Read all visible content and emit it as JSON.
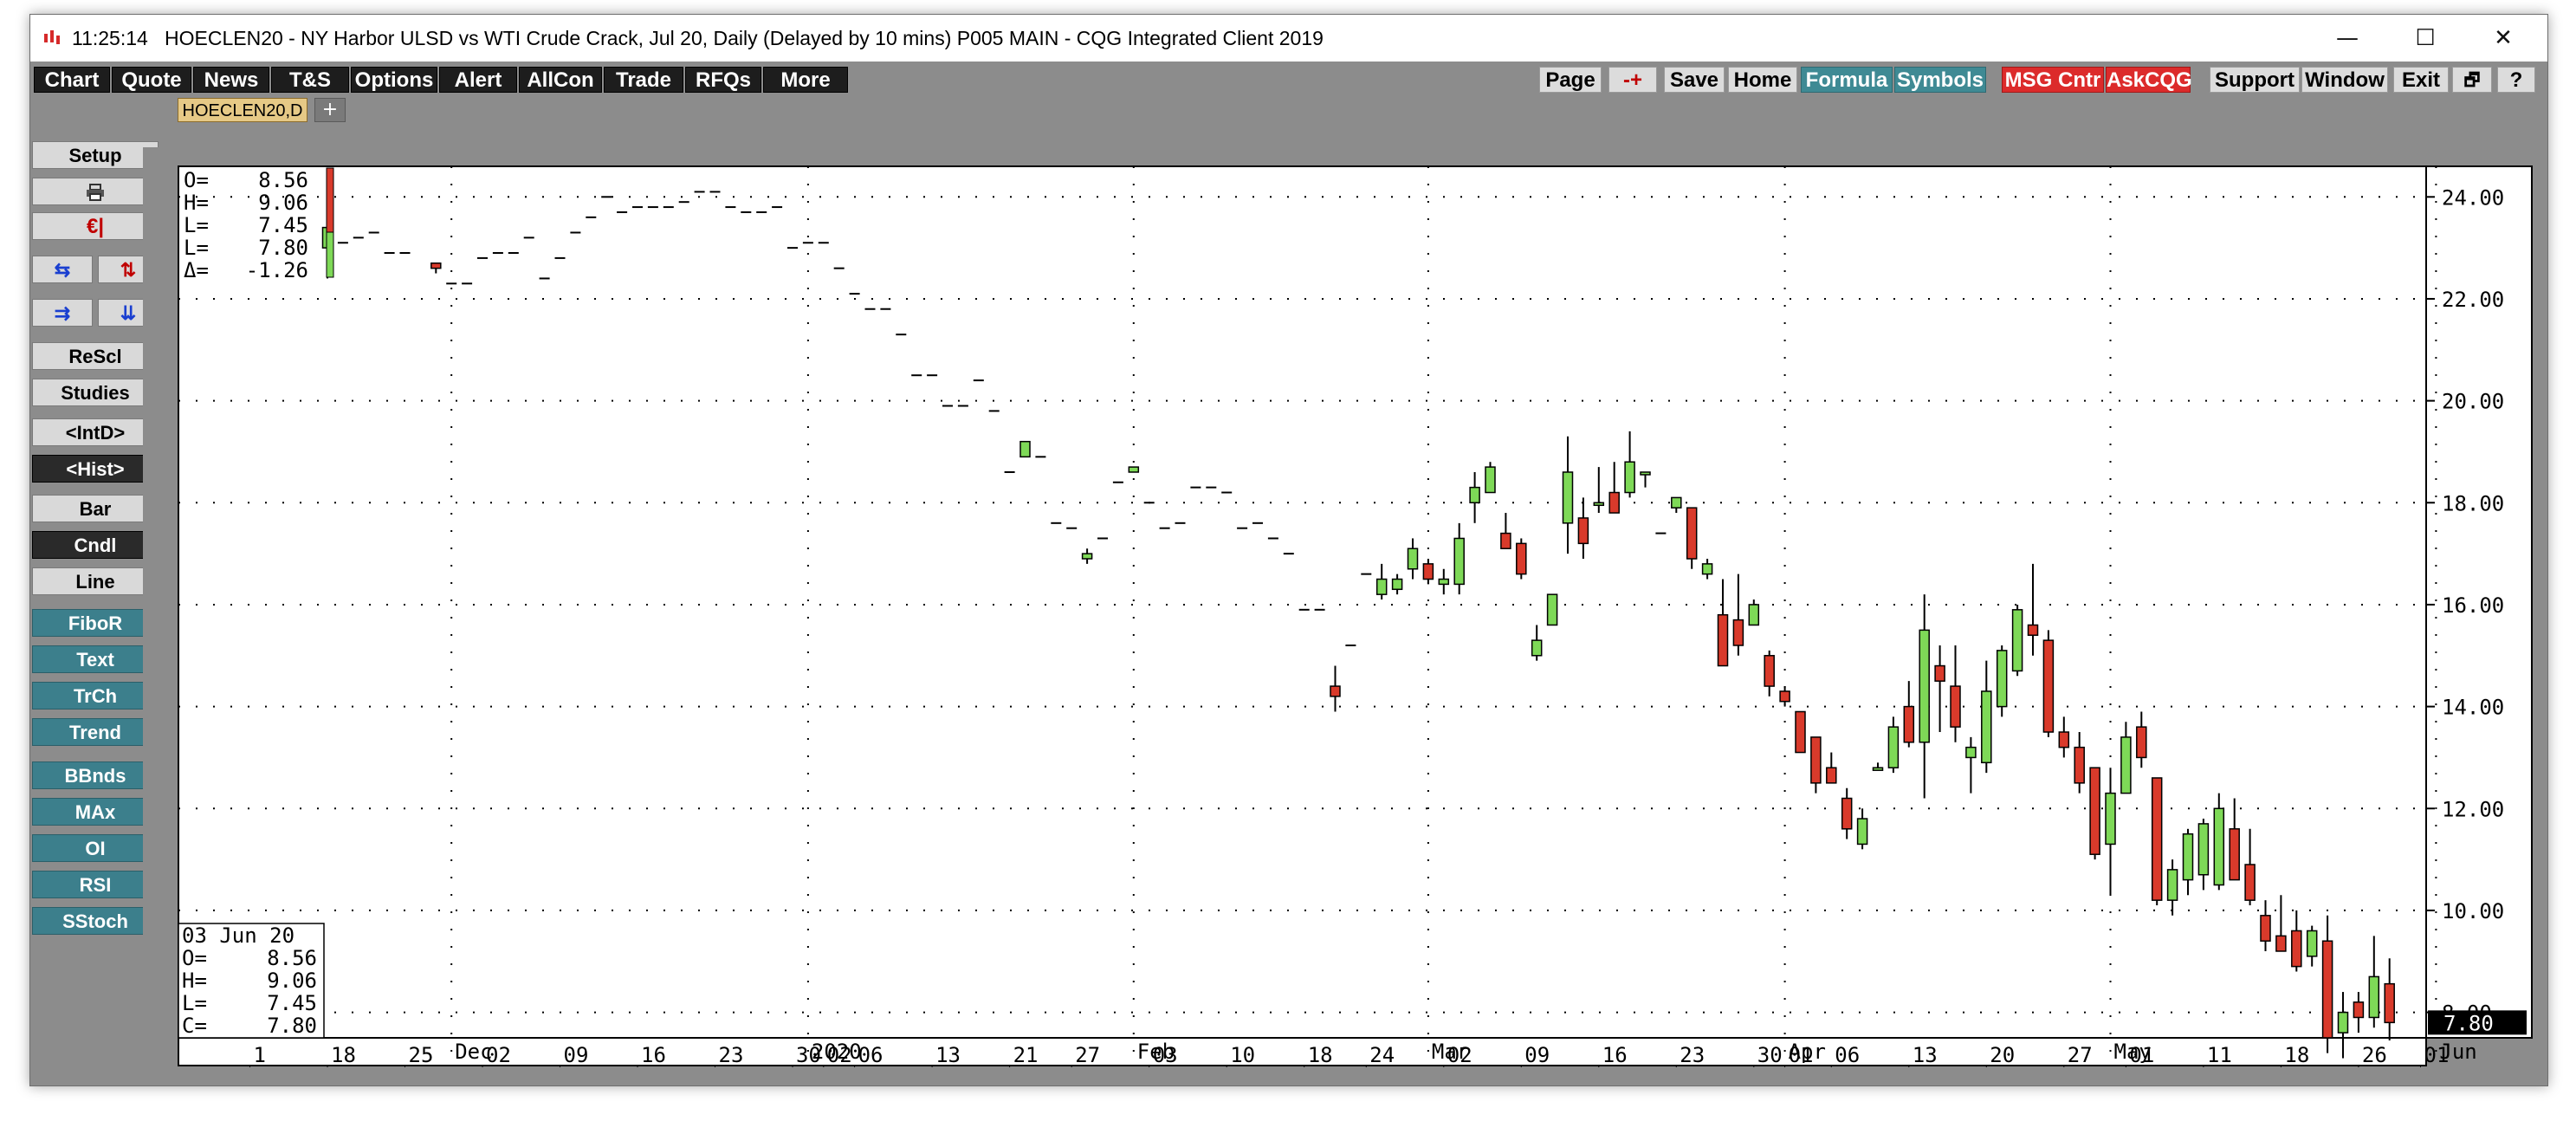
{
  "window": {
    "time": "11:25:14",
    "title": "HOECLEN20 - NY Harbor ULSD vs WTI Crude Crack, Jul 20, Daily (Delayed by 10 mins)   P005 MAIN - CQG Integrated Client 2019",
    "minimize_glyph": "—",
    "maximize_glyph": "☐",
    "close_glyph": "✕"
  },
  "toolbar": {
    "left": [
      "Chart",
      "Quote",
      "News",
      "T&S",
      "Options",
      "Alert",
      "AllCon",
      "Trade",
      "RFQs",
      "More"
    ],
    "page": "Page",
    "plusminus": "-+",
    "save": "Save",
    "home": "Home",
    "formula": "Formula",
    "symbols": "Symbols",
    "msg_cntr": "MSG Cntr",
    "askcqg": "AskCQG",
    "support": "Support",
    "window": "Window",
    "exit": "Exit",
    "restore_glyph": "🗗",
    "help": "?"
  },
  "sidebar": {
    "setup": "Setup",
    "rescl": "ReScl",
    "studies": "Studies",
    "intd": "<IntD>",
    "hist": "<Hist>",
    "bar": "Bar",
    "cndl": "Cndl",
    "line": "Line",
    "fibor": "FiboR",
    "text": "Text",
    "trch": "TrCh",
    "trend": "Trend",
    "bbnds": "BBnds",
    "max": "MAx",
    "oi": "OI",
    "rsi": "RSI",
    "sstoch": "SStoch",
    "print_icon": "printer-icon",
    "euro_icon": "euro-icon"
  },
  "tabs": {
    "active": "HOECLEN20,D",
    "add": "+"
  },
  "chart_data": {
    "type": "candlestick",
    "title": "",
    "xlabel": "",
    "ylabel": "",
    "ylim": [
      7.5,
      24.6
    ],
    "y_ticks": [
      24,
      22,
      20,
      18,
      16,
      14,
      12,
      10,
      8
    ],
    "y_tick_labels": [
      "24.00",
      "22.00",
      "20.00",
      "18.00",
      "16.00",
      "14.00",
      "12.00",
      "10.00",
      "8.00"
    ],
    "grid": true,
    "last_price_label": "7.80",
    "ohlc_box": {
      "O": "8.56",
      "H": "9.06",
      "L": "7.45",
      "L2": "7.80",
      "delta": "-1.26"
    },
    "data_box": {
      "date": "03 Jun 20",
      "O": "8.56",
      "H": "9.06",
      "L": "7.45",
      "C": "7.80"
    },
    "x_axis_top": [
      {
        "label": "Dec",
        "day": 8
      },
      {
        "label": "2020",
        "day": 31
      },
      {
        "label": "Feb",
        "day": 52
      },
      {
        "label": "Mar",
        "day": 71
      },
      {
        "label": "Apr",
        "day": 94
      },
      {
        "label": "May",
        "day": 115
      },
      {
        "label": "Jun",
        "day": 136
      }
    ],
    "x_axis_bottom": [
      {
        "label": "1",
        "day": -5
      },
      {
        "label": "18",
        "day": 0
      },
      {
        "label": "25",
        "day": 5
      },
      {
        "label": "02",
        "day": 10
      },
      {
        "label": "09",
        "day": 15
      },
      {
        "label": "16",
        "day": 20
      },
      {
        "label": "23",
        "day": 25
      },
      {
        "label": "30",
        "day": 30
      },
      {
        "label": "02",
        "day": 32
      },
      {
        "label": "06",
        "day": 34
      },
      {
        "label": "13",
        "day": 39
      },
      {
        "label": "21",
        "day": 44
      },
      {
        "label": "27",
        "day": 48
      },
      {
        "label": "03",
        "day": 53
      },
      {
        "label": "10",
        "day": 58
      },
      {
        "label": "18",
        "day": 63
      },
      {
        "label": "24",
        "day": 67
      },
      {
        "label": "02",
        "day": 72
      },
      {
        "label": "09",
        "day": 77
      },
      {
        "label": "16",
        "day": 82
      },
      {
        "label": "23",
        "day": 87
      },
      {
        "label": "30",
        "day": 92
      },
      {
        "label": "01",
        "day": 94
      },
      {
        "label": "06",
        "day": 97
      },
      {
        "label": "13",
        "day": 102
      },
      {
        "label": "20",
        "day": 107
      },
      {
        "label": "27",
        "day": 112
      },
      {
        "label": "01",
        "day": 116
      },
      {
        "label": "11",
        "day": 121
      },
      {
        "label": "18",
        "day": 126
      },
      {
        "label": "26",
        "day": 131
      },
      {
        "label": "01",
        "day": 135
      }
    ],
    "candles": [
      {
        "d": 0,
        "o": 23.0,
        "h": 24.3,
        "l": 22.4,
        "c": 23.4
      },
      {
        "d": 1,
        "o": 23.1,
        "h": 23.1,
        "l": 23.1,
        "c": 23.1
      },
      {
        "d": 2,
        "o": 23.2,
        "h": 23.2,
        "l": 23.2,
        "c": 23.2
      },
      {
        "d": 3,
        "o": 23.3,
        "h": 23.3,
        "l": 23.3,
        "c": 23.3
      },
      {
        "d": 4,
        "o": 22.9,
        "h": 22.9,
        "l": 22.9,
        "c": 22.9
      },
      {
        "d": 5,
        "o": 22.9,
        "h": 22.9,
        "l": 22.9,
        "c": 22.9
      },
      {
        "d": 7,
        "o": 22.7,
        "h": 22.7,
        "l": 22.5,
        "c": 22.6
      },
      {
        "d": 8,
        "o": 22.3,
        "h": 22.3,
        "l": 22.3,
        "c": 22.3
      },
      {
        "d": 9,
        "o": 22.3,
        "h": 22.3,
        "l": 22.3,
        "c": 22.3
      },
      {
        "d": 10,
        "o": 22.8,
        "h": 22.8,
        "l": 22.8,
        "c": 22.8
      },
      {
        "d": 11,
        "o": 22.9,
        "h": 22.9,
        "l": 22.9,
        "c": 22.9
      },
      {
        "d": 12,
        "o": 22.9,
        "h": 22.9,
        "l": 22.9,
        "c": 22.9
      },
      {
        "d": 13,
        "o": 23.2,
        "h": 23.2,
        "l": 23.2,
        "c": 23.2
      },
      {
        "d": 14,
        "o": 22.4,
        "h": 22.4,
        "l": 22.4,
        "c": 22.4
      },
      {
        "d": 15,
        "o": 22.8,
        "h": 22.8,
        "l": 22.8,
        "c": 22.8
      },
      {
        "d": 16,
        "o": 23.3,
        "h": 23.3,
        "l": 23.3,
        "c": 23.3
      },
      {
        "d": 17,
        "o": 23.6,
        "h": 23.6,
        "l": 23.6,
        "c": 23.6
      },
      {
        "d": 18,
        "o": 24.0,
        "h": 24.0,
        "l": 24.0,
        "c": 24.0
      },
      {
        "d": 19,
        "o": 23.7,
        "h": 23.7,
        "l": 23.7,
        "c": 23.7
      },
      {
        "d": 20,
        "o": 23.8,
        "h": 23.8,
        "l": 23.8,
        "c": 23.8
      },
      {
        "d": 21,
        "o": 23.8,
        "h": 23.8,
        "l": 23.8,
        "c": 23.8
      },
      {
        "d": 22,
        "o": 23.8,
        "h": 23.8,
        "l": 23.8,
        "c": 23.8
      },
      {
        "d": 23,
        "o": 23.9,
        "h": 23.9,
        "l": 23.9,
        "c": 23.9
      },
      {
        "d": 24,
        "o": 24.1,
        "h": 24.1,
        "l": 24.1,
        "c": 24.1
      },
      {
        "d": 25,
        "o": 24.1,
        "h": 24.1,
        "l": 24.1,
        "c": 24.1
      },
      {
        "d": 26,
        "o": 23.8,
        "h": 23.8,
        "l": 23.8,
        "c": 23.8
      },
      {
        "d": 27,
        "o": 23.7,
        "h": 23.7,
        "l": 23.7,
        "c": 23.7
      },
      {
        "d": 28,
        "o": 23.7,
        "h": 23.7,
        "l": 23.7,
        "c": 23.7
      },
      {
        "d": 29,
        "o": 23.8,
        "h": 23.8,
        "l": 23.8,
        "c": 23.8
      },
      {
        "d": 30,
        "o": 23.0,
        "h": 23.0,
        "l": 23.0,
        "c": 23.0
      },
      {
        "d": 31,
        "o": 23.1,
        "h": 23.1,
        "l": 23.1,
        "c": 23.1
      },
      {
        "d": 32,
        "o": 23.1,
        "h": 23.1,
        "l": 23.1,
        "c": 23.1
      },
      {
        "d": 33,
        "o": 22.6,
        "h": 22.6,
        "l": 22.6,
        "c": 22.6
      },
      {
        "d": 34,
        "o": 22.1,
        "h": 22.1,
        "l": 22.1,
        "c": 22.1
      },
      {
        "d": 35,
        "o": 21.8,
        "h": 21.8,
        "l": 21.8,
        "c": 21.8
      },
      {
        "d": 36,
        "o": 21.8,
        "h": 21.8,
        "l": 21.8,
        "c": 21.8
      },
      {
        "d": 37,
        "o": 21.3,
        "h": 21.3,
        "l": 21.3,
        "c": 21.3
      },
      {
        "d": 38,
        "o": 20.5,
        "h": 20.5,
        "l": 20.5,
        "c": 20.5
      },
      {
        "d": 39,
        "o": 20.5,
        "h": 20.5,
        "l": 20.5,
        "c": 20.5
      },
      {
        "d": 40,
        "o": 19.9,
        "h": 19.9,
        "l": 19.9,
        "c": 19.9
      },
      {
        "d": 41,
        "o": 19.9,
        "h": 19.9,
        "l": 19.9,
        "c": 19.9
      },
      {
        "d": 42,
        "o": 20.4,
        "h": 20.4,
        "l": 20.4,
        "c": 20.4
      },
      {
        "d": 43,
        "o": 19.8,
        "h": 19.8,
        "l": 19.8,
        "c": 19.8
      },
      {
        "d": 44,
        "o": 18.6,
        "h": 18.6,
        "l": 18.6,
        "c": 18.6
      },
      {
        "d": 45,
        "o": 18.9,
        "h": 19.2,
        "l": 18.9,
        "c": 19.2
      },
      {
        "d": 46,
        "o": 18.9,
        "h": 18.9,
        "l": 18.9,
        "c": 18.9
      },
      {
        "d": 47,
        "o": 17.6,
        "h": 17.6,
        "l": 17.6,
        "c": 17.6
      },
      {
        "d": 48,
        "o": 17.5,
        "h": 17.5,
        "l": 17.5,
        "c": 17.5
      },
      {
        "d": 49,
        "o": 16.9,
        "h": 17.1,
        "l": 16.8,
        "c": 17.0
      },
      {
        "d": 50,
        "o": 17.3,
        "h": 17.3,
        "l": 17.3,
        "c": 17.3
      },
      {
        "d": 51,
        "o": 18.4,
        "h": 18.4,
        "l": 18.4,
        "c": 18.4
      },
      {
        "d": 52,
        "o": 18.6,
        "h": 18.7,
        "l": 18.6,
        "c": 18.7
      },
      {
        "d": 53,
        "o": 18.0,
        "h": 18.0,
        "l": 18.0,
        "c": 18.0
      },
      {
        "d": 54,
        "o": 17.5,
        "h": 17.5,
        "l": 17.5,
        "c": 17.5
      },
      {
        "d": 55,
        "o": 17.6,
        "h": 17.6,
        "l": 17.6,
        "c": 17.6
      },
      {
        "d": 56,
        "o": 18.3,
        "h": 18.3,
        "l": 18.3,
        "c": 18.3
      },
      {
        "d": 57,
        "o": 18.3,
        "h": 18.3,
        "l": 18.3,
        "c": 18.3
      },
      {
        "d": 58,
        "o": 18.2,
        "h": 18.2,
        "l": 18.2,
        "c": 18.2
      },
      {
        "d": 59,
        "o": 17.5,
        "h": 17.5,
        "l": 17.5,
        "c": 17.5
      },
      {
        "d": 60,
        "o": 17.6,
        "h": 17.6,
        "l": 17.6,
        "c": 17.6
      },
      {
        "d": 61,
        "o": 17.3,
        "h": 17.3,
        "l": 17.3,
        "c": 17.3
      },
      {
        "d": 62,
        "o": 17.0,
        "h": 17.0,
        "l": 17.0,
        "c": 17.0
      },
      {
        "d": 63,
        "o": 15.9,
        "h": 15.9,
        "l": 15.9,
        "c": 15.9
      },
      {
        "d": 64,
        "o": 15.9,
        "h": 15.9,
        "l": 15.9,
        "c": 15.9
      },
      {
        "d": 65,
        "o": 14.4,
        "h": 14.8,
        "l": 13.9,
        "c": 14.2
      },
      {
        "d": 66,
        "o": 15.2,
        "h": 15.2,
        "l": 15.2,
        "c": 15.2
      },
      {
        "d": 67,
        "o": 16.6,
        "h": 16.6,
        "l": 16.6,
        "c": 16.6
      },
      {
        "d": 68,
        "o": 16.2,
        "h": 16.8,
        "l": 16.1,
        "c": 16.5
      },
      {
        "d": 69,
        "o": 16.3,
        "h": 16.6,
        "l": 16.2,
        "c": 16.5
      },
      {
        "d": 70,
        "o": 16.7,
        "h": 17.3,
        "l": 16.5,
        "c": 17.1
      },
      {
        "d": 71,
        "o": 16.8,
        "h": 16.9,
        "l": 16.4,
        "c": 16.5
      },
      {
        "d": 72,
        "o": 16.4,
        "h": 16.7,
        "l": 16.2,
        "c": 16.5
      },
      {
        "d": 73,
        "o": 16.4,
        "h": 17.6,
        "l": 16.2,
        "c": 17.3
      },
      {
        "d": 74,
        "o": 18.0,
        "h": 18.6,
        "l": 17.6,
        "c": 18.3
      },
      {
        "d": 75,
        "o": 18.2,
        "h": 18.8,
        "l": 18.2,
        "c": 18.7
      },
      {
        "d": 76,
        "o": 17.4,
        "h": 17.8,
        "l": 17.2,
        "c": 17.1
      },
      {
        "d": 77,
        "o": 17.2,
        "h": 17.3,
        "l": 16.5,
        "c": 16.6
      },
      {
        "d": 78,
        "o": 15.0,
        "h": 15.6,
        "l": 14.9,
        "c": 15.3
      },
      {
        "d": 79,
        "o": 15.6,
        "h": 16.2,
        "l": 15.6,
        "c": 16.2
      },
      {
        "d": 80,
        "o": 17.6,
        "h": 19.3,
        "l": 17.0,
        "c": 18.6
      },
      {
        "d": 81,
        "o": 17.7,
        "h": 18.1,
        "l": 16.9,
        "c": 17.2
      },
      {
        "d": 82,
        "o": 18.0,
        "h": 18.7,
        "l": 17.8,
        "c": 18.0
      },
      {
        "d": 83,
        "o": 18.2,
        "h": 18.8,
        "l": 17.8,
        "c": 17.8
      },
      {
        "d": 84,
        "o": 18.2,
        "h": 19.4,
        "l": 18.1,
        "c": 18.8
      },
      {
        "d": 85,
        "o": 18.6,
        "h": 18.6,
        "l": 18.3,
        "c": 18.6
      },
      {
        "d": 86,
        "o": 17.4,
        "h": 17.4,
        "l": 17.4,
        "c": 17.4
      },
      {
        "d": 87,
        "o": 17.9,
        "h": 18.1,
        "l": 17.8,
        "c": 18.1
      },
      {
        "d": 88,
        "o": 17.9,
        "h": 17.9,
        "l": 16.7,
        "c": 16.9
      },
      {
        "d": 89,
        "o": 16.6,
        "h": 16.9,
        "l": 16.5,
        "c": 16.8
      },
      {
        "d": 90,
        "o": 15.8,
        "h": 16.5,
        "l": 14.8,
        "c": 14.8
      },
      {
        "d": 91,
        "o": 15.7,
        "h": 16.6,
        "l": 15.0,
        "c": 15.2
      },
      {
        "d": 92,
        "o": 15.6,
        "h": 16.1,
        "l": 15.6,
        "c": 16.0
      },
      {
        "d": 93,
        "o": 15.0,
        "h": 15.1,
        "l": 14.2,
        "c": 14.4
      },
      {
        "d": 94,
        "o": 14.3,
        "h": 14.4,
        "l": 14.0,
        "c": 14.1
      },
      {
        "d": 95,
        "o": 13.9,
        "h": 13.9,
        "l": 13.1,
        "c": 13.1
      },
      {
        "d": 96,
        "o": 13.4,
        "h": 13.4,
        "l": 12.3,
        "c": 12.5
      },
      {
        "d": 97,
        "o": 12.8,
        "h": 13.1,
        "l": 12.5,
        "c": 12.5
      },
      {
        "d": 98,
        "o": 12.2,
        "h": 12.4,
        "l": 11.4,
        "c": 11.6
      },
      {
        "d": 99,
        "o": 11.3,
        "h": 12.0,
        "l": 11.2,
        "c": 11.8
      },
      {
        "d": 100,
        "o": 12.8,
        "h": 12.9,
        "l": 12.8,
        "c": 12.8
      },
      {
        "d": 101,
        "o": 12.8,
        "h": 13.8,
        "l": 12.7,
        "c": 13.6
      },
      {
        "d": 102,
        "o": 14.0,
        "h": 14.5,
        "l": 13.2,
        "c": 13.3
      },
      {
        "d": 103,
        "o": 13.3,
        "h": 16.2,
        "l": 12.2,
        "c": 15.5
      },
      {
        "d": 104,
        "o": 14.8,
        "h": 15.2,
        "l": 13.5,
        "c": 14.5
      },
      {
        "d": 105,
        "o": 14.4,
        "h": 15.2,
        "l": 13.3,
        "c": 13.6
      },
      {
        "d": 106,
        "o": 13.0,
        "h": 13.4,
        "l": 12.3,
        "c": 13.2
      },
      {
        "d": 107,
        "o": 12.9,
        "h": 14.9,
        "l": 12.7,
        "c": 14.3
      },
      {
        "d": 108,
        "o": 14.0,
        "h": 15.2,
        "l": 13.8,
        "c": 15.1
      },
      {
        "d": 109,
        "o": 14.7,
        "h": 16.0,
        "l": 14.6,
        "c": 15.9
      },
      {
        "d": 110,
        "o": 15.6,
        "h": 16.8,
        "l": 15.0,
        "c": 15.4
      },
      {
        "d": 111,
        "o": 15.3,
        "h": 15.5,
        "l": 13.4,
        "c": 13.5
      },
      {
        "d": 112,
        "o": 13.5,
        "h": 13.8,
        "l": 13.0,
        "c": 13.2
      },
      {
        "d": 113,
        "o": 13.2,
        "h": 13.5,
        "l": 12.3,
        "c": 12.5
      },
      {
        "d": 114,
        "o": 12.8,
        "h": 12.8,
        "l": 11.0,
        "c": 11.1
      },
      {
        "d": 115,
        "o": 11.3,
        "h": 12.8,
        "l": 10.3,
        "c": 12.3
      },
      {
        "d": 116,
        "o": 12.3,
        "h": 13.7,
        "l": 12.3,
        "c": 13.4
      },
      {
        "d": 117,
        "o": 13.6,
        "h": 13.9,
        "l": 12.8,
        "c": 13.0
      },
      {
        "d": 118,
        "o": 12.6,
        "h": 12.6,
        "l": 10.1,
        "c": 10.2
      },
      {
        "d": 119,
        "o": 10.2,
        "h": 11.0,
        "l": 9.9,
        "c": 10.8
      },
      {
        "d": 120,
        "o": 10.6,
        "h": 11.6,
        "l": 10.3,
        "c": 11.5
      },
      {
        "d": 121,
        "o": 10.7,
        "h": 11.8,
        "l": 10.4,
        "c": 11.7
      },
      {
        "d": 122,
        "o": 10.5,
        "h": 12.3,
        "l": 10.4,
        "c": 12.0
      },
      {
        "d": 123,
        "o": 11.6,
        "h": 12.2,
        "l": 10.6,
        "c": 10.6
      },
      {
        "d": 124,
        "o": 10.9,
        "h": 11.6,
        "l": 10.1,
        "c": 10.2
      },
      {
        "d": 125,
        "o": 9.9,
        "h": 10.2,
        "l": 9.2,
        "c": 9.4
      },
      {
        "d": 126,
        "o": 9.5,
        "h": 10.3,
        "l": 9.2,
        "c": 9.2
      },
      {
        "d": 127,
        "o": 9.6,
        "h": 10.0,
        "l": 8.8,
        "c": 8.9
      },
      {
        "d": 128,
        "o": 9.1,
        "h": 9.7,
        "l": 8.9,
        "c": 9.6
      },
      {
        "d": 129,
        "o": 9.4,
        "h": 9.9,
        "l": 7.2,
        "c": 7.5
      },
      {
        "d": 130,
        "o": 7.6,
        "h": 8.4,
        "l": 7.1,
        "c": 8.0
      },
      {
        "d": 131,
        "o": 8.2,
        "h": 8.4,
        "l": 7.6,
        "c": 7.9
      },
      {
        "d": 132,
        "o": 7.9,
        "h": 9.5,
        "l": 7.7,
        "c": 8.7
      },
      {
        "d": 133,
        "o": 8.56,
        "h": 9.06,
        "l": 7.45,
        "c": 7.8
      }
    ]
  }
}
